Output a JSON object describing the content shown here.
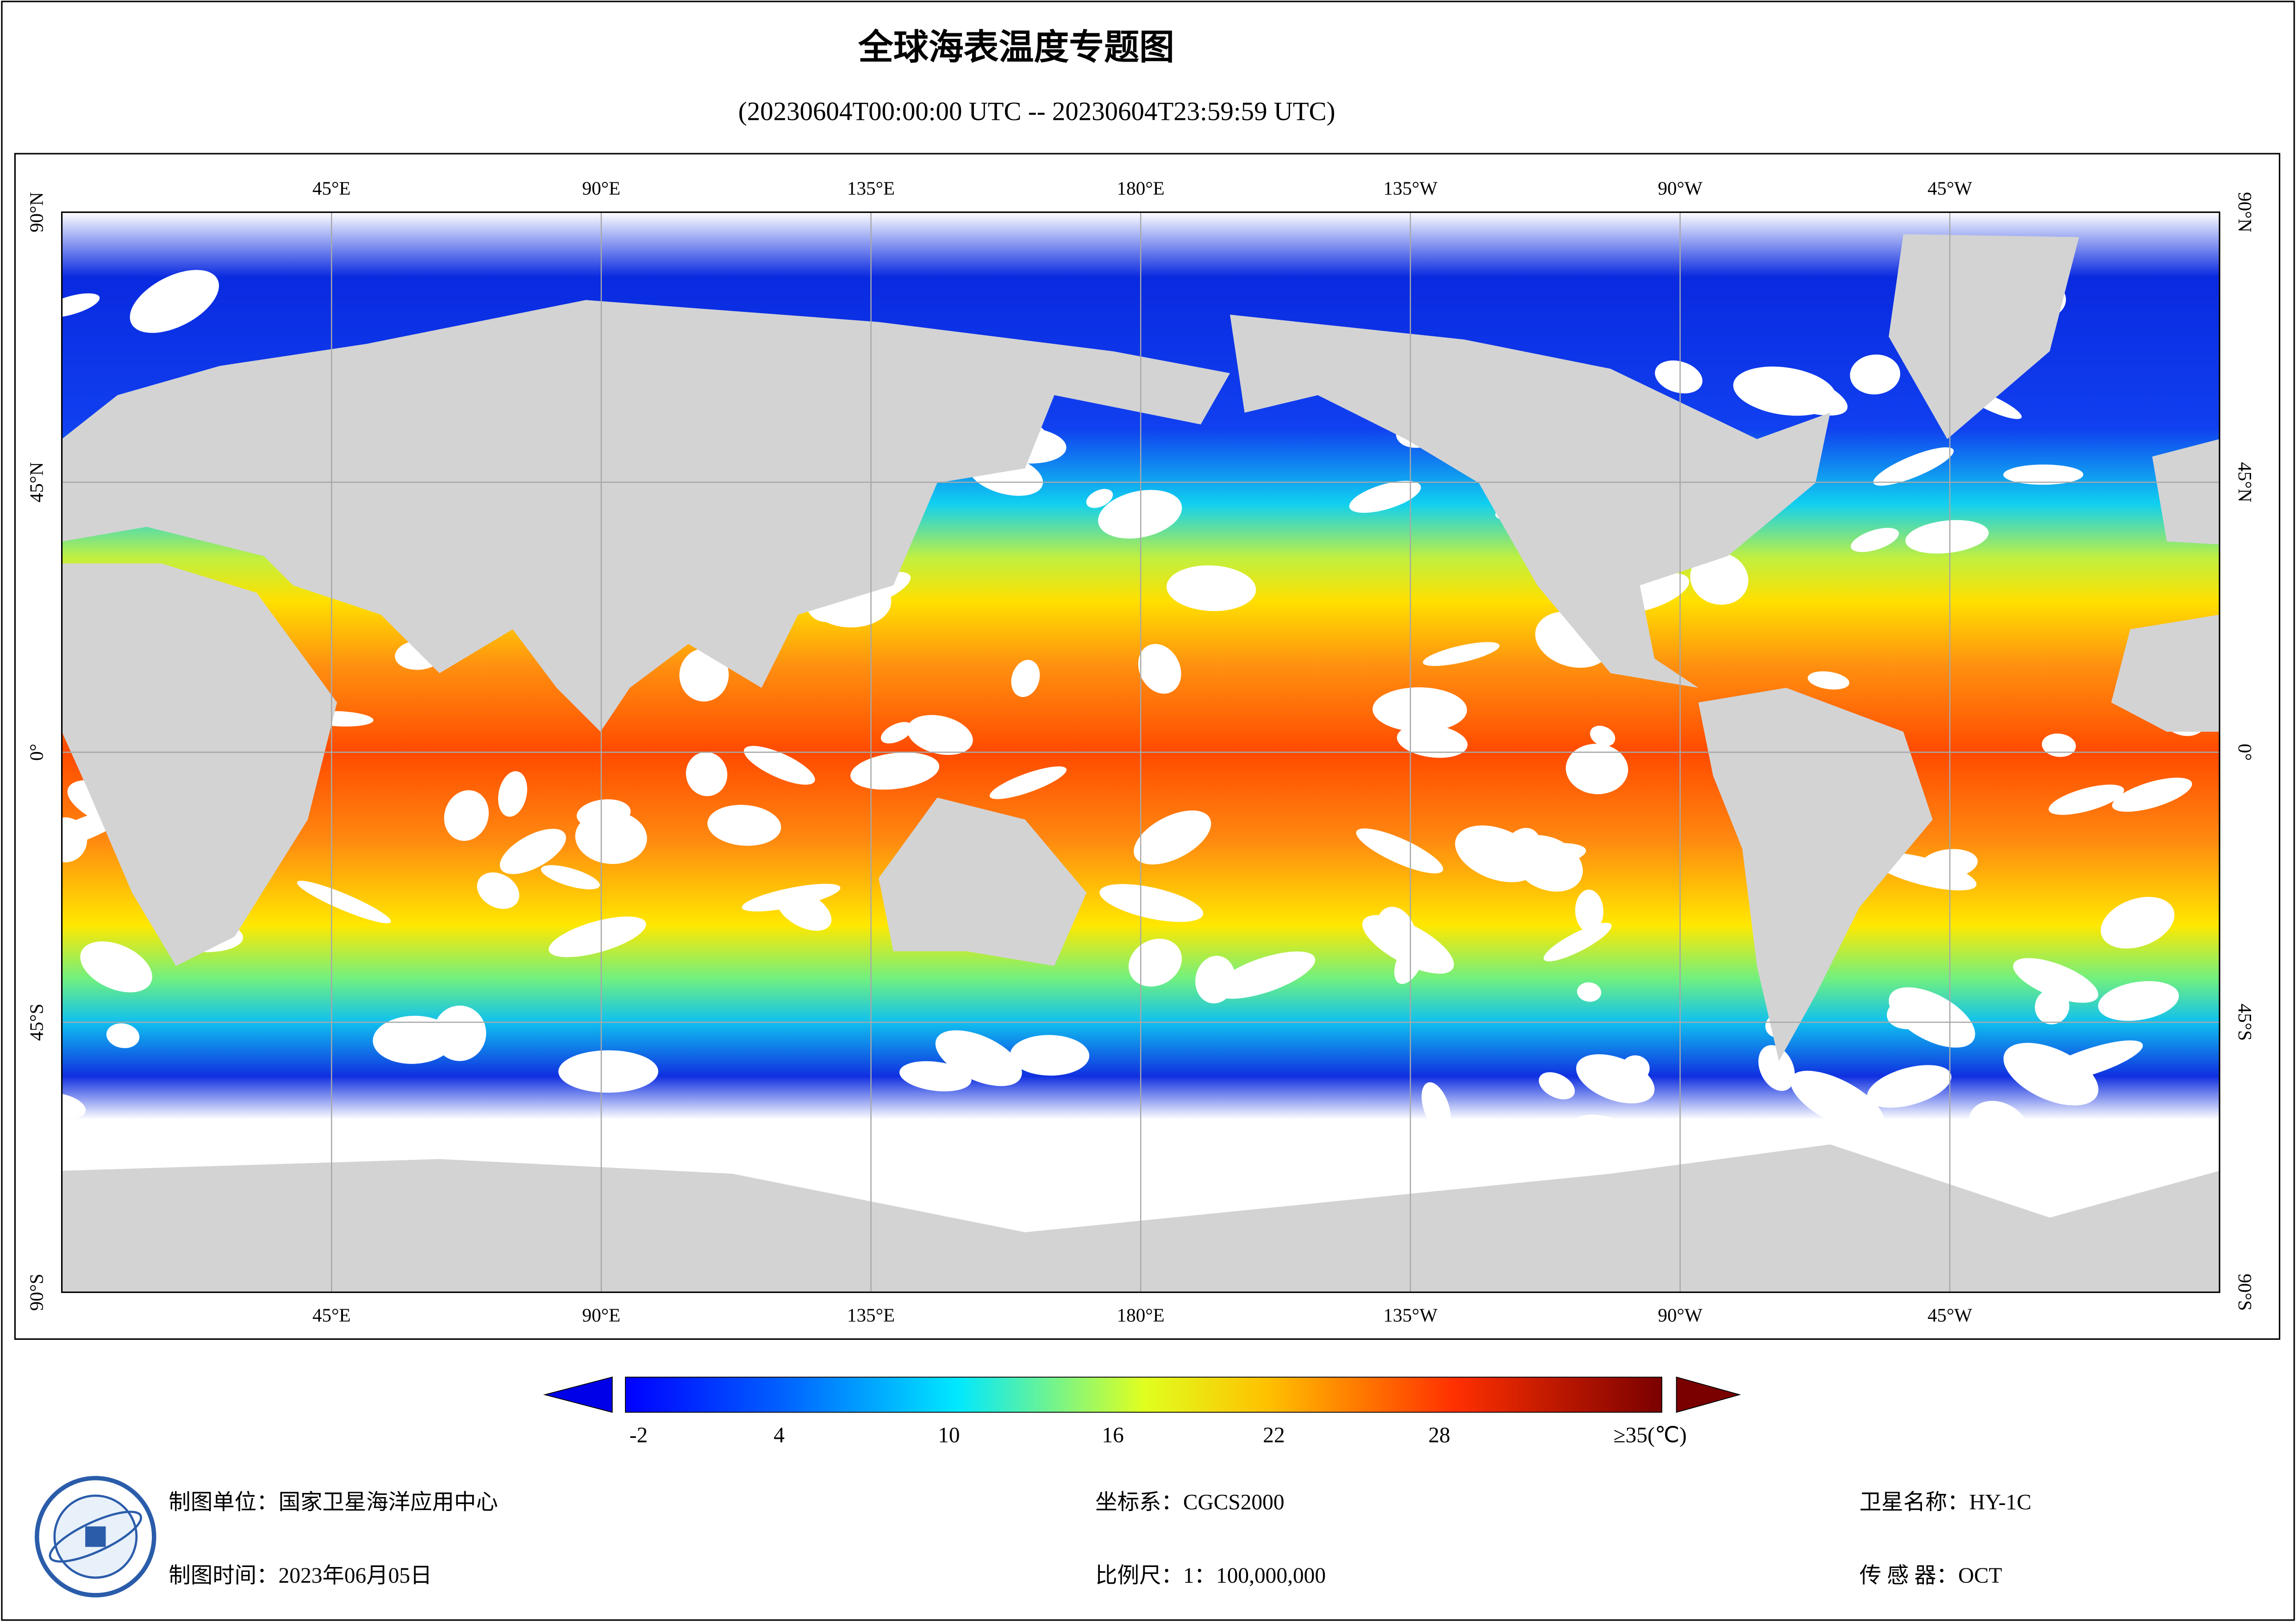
{
  "title": "全球海表温度专题图",
  "subtitle": "(20230604T00:00:00 UTC -- 20230604T23:59:59 UTC)",
  "map": {
    "lon_labels": [
      "45°E",
      "90°E",
      "135°E",
      "180°E",
      "135°W",
      "90°W",
      "45°W"
    ],
    "lat_labels": [
      "90°N",
      "45°N",
      "0°",
      "45°S",
      "90°S"
    ]
  },
  "colorbar": {
    "labels": [
      "-2",
      "4",
      "10",
      "16",
      "22",
      "28",
      "≥35(℃)"
    ]
  },
  "footer": {
    "unit": "制图单位：国家卫星海洋应用中心",
    "date": "制图时间：2023年06月05日",
    "crs": "坐标系：CGCS2000",
    "scale": "比例尺：1：100,000,000",
    "satellite": "卫星名称：HY-1C",
    "sensor": "传 感 器：OCT"
  }
}
